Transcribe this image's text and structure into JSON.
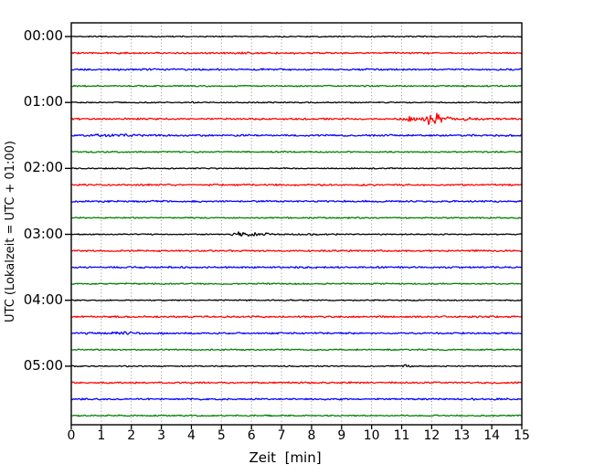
{
  "chart_data": {
    "type": "line",
    "subtype": "helicorder-seismogram",
    "title": "",
    "xlabel": "Zeit  [min]",
    "ylabel": "UTC (Lokalzeit = UTC + 01:00)",
    "x_range": [
      0,
      15
    ],
    "x_ticks": [
      "0",
      "1",
      "2",
      "3",
      "4",
      "5",
      "6",
      "7",
      "8",
      "9",
      "10",
      "11",
      "12",
      "13",
      "14",
      "15"
    ],
    "hour_tick_labels": [
      "00:00",
      "01:00",
      "02:00",
      "03:00",
      "04:00",
      "05:00"
    ],
    "minutes_per_line": 15,
    "grid": "vertical-dotted",
    "grid_color": "#8a8a8a",
    "axis_color": "#000000",
    "colors": {
      "black": "#000000",
      "red": "#ff0000",
      "blue": "#0000ff",
      "green": "#008000"
    },
    "base_noise": {
      "black": 0.55,
      "red": 0.8,
      "blue": 0.8,
      "green": 0.65
    },
    "traces": [
      {
        "label": "00:00",
        "color": "black",
        "events": []
      },
      {
        "label": "00:15",
        "color": "red",
        "events": []
      },
      {
        "label": "00:30",
        "color": "blue",
        "events": []
      },
      {
        "label": "00:45",
        "color": "green",
        "events": []
      },
      {
        "label": "01:00",
        "color": "black",
        "events": [
          {
            "start": 3.9,
            "peak": 4.05,
            "end": 4.3,
            "amp": 0.8
          }
        ]
      },
      {
        "label": "01:15",
        "color": "red",
        "events": [
          {
            "start": 10.85,
            "peak": 11.3,
            "end": 11.65,
            "amp": 3.0
          },
          {
            "start": 11.55,
            "peak": 12.0,
            "end": 12.9,
            "amp": 7.5
          },
          {
            "start": 12.85,
            "peak": 13.1,
            "end": 14.2,
            "amp": 1.0
          }
        ]
      },
      {
        "label": "01:30",
        "color": "blue",
        "events": [
          {
            "start": 0.0,
            "peak": 1.7,
            "end": 2.55,
            "amp": 1.5
          }
        ]
      },
      {
        "label": "01:45",
        "color": "green",
        "events": []
      },
      {
        "label": "02:00",
        "color": "black",
        "events": []
      },
      {
        "label": "02:15",
        "color": "red",
        "events": []
      },
      {
        "label": "02:30",
        "color": "blue",
        "events": []
      },
      {
        "label": "02:45",
        "color": "green",
        "events": []
      },
      {
        "label": "03:00",
        "color": "black",
        "events": [
          {
            "start": 5.2,
            "peak": 5.6,
            "end": 7.3,
            "amp": 2.6
          },
          {
            "start": 7.3,
            "peak": 7.6,
            "end": 9.2,
            "amp": 0.9
          }
        ]
      },
      {
        "label": "03:15",
        "color": "red",
        "events": []
      },
      {
        "label": "03:30",
        "color": "blue",
        "events": []
      },
      {
        "label": "03:45",
        "color": "green",
        "events": []
      },
      {
        "label": "04:00",
        "color": "black",
        "events": []
      },
      {
        "label": "04:15",
        "color": "red",
        "events": []
      },
      {
        "label": "04:30",
        "color": "blue",
        "events": [
          {
            "start": 1.0,
            "peak": 1.9,
            "end": 2.7,
            "amp": 1.4
          }
        ]
      },
      {
        "label": "04:45",
        "color": "green",
        "events": []
      },
      {
        "label": "05:00",
        "color": "black",
        "events": [
          {
            "start": 10.9,
            "peak": 11.15,
            "end": 11.5,
            "amp": 1.2
          }
        ]
      },
      {
        "label": "05:15",
        "color": "red",
        "events": []
      },
      {
        "label": "05:30",
        "color": "blue",
        "events": []
      },
      {
        "label": "05:45",
        "color": "green",
        "events": []
      }
    ]
  }
}
